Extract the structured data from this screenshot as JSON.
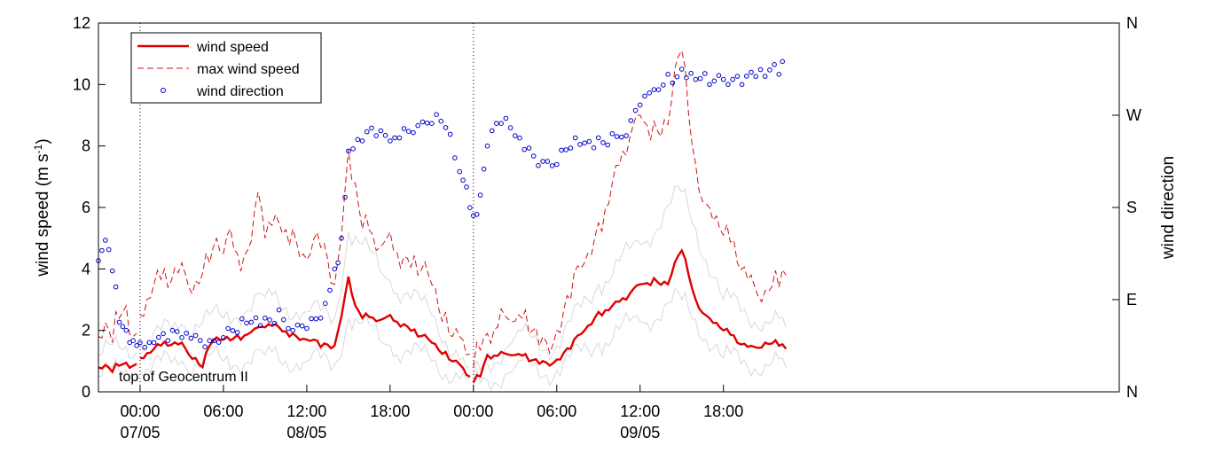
{
  "chart_data": {
    "type": "line",
    "ylabel": "wind speed (m s-1)",
    "ylabel_main": "wind speed (m s",
    "ylabel_sup": "-1",
    "ylabel_close": ")",
    "y2label": "wind direction",
    "annotation": "top of Geocentrum II",
    "ylim": [
      0,
      12
    ],
    "yticks": [
      0,
      2,
      4,
      6,
      8,
      10,
      12
    ],
    "ytick_labels": [
      "0",
      "2",
      "4",
      "6",
      "8",
      "10",
      "12"
    ],
    "y2ticks": [
      {
        "value": 0,
        "label": "N"
      },
      {
        "value": 90,
        "label": "E"
      },
      {
        "value": 180,
        "label": "S"
      },
      {
        "value": 270,
        "label": "W"
      },
      {
        "value": 360,
        "label": "N"
      }
    ],
    "y2lim": [
      0,
      360
    ],
    "xlim": [
      "2014-05-06T21:00",
      "2014-05-09T22:30"
    ],
    "xticks": [
      {
        "time": "2014-05-07T00:00",
        "label": "00:00",
        "date": "07/05"
      },
      {
        "time": "2014-05-07T06:00",
        "label": "06:00"
      },
      {
        "time": "2014-05-07T12:00",
        "label": "12:00",
        "date": "08/05"
      },
      {
        "time": "2014-05-07T18:00",
        "label": "18:00"
      },
      {
        "time": "2014-05-08T00:00",
        "label": "00:00"
      },
      {
        "time": "2014-05-08T06:00",
        "label": "06:00"
      },
      {
        "time": "2014-05-08T12:00",
        "label": "12:00",
        "date": "09/05"
      },
      {
        "time": "2014-05-08T18:00",
        "label": "18:00"
      }
    ],
    "day_separators": [
      "2014-05-07T00:00",
      "2014-05-08T00:00"
    ],
    "legend": {
      "placement": "top-left",
      "entries": [
        "wind speed",
        "max wind speed",
        "wind direction"
      ]
    },
    "colors": {
      "wind_speed": "#e00000",
      "max_wind_speed": "#d01010",
      "wind_direction": "#0000cc",
      "spread": "#d8d8d8"
    },
    "series": [
      {
        "name": "wind speed",
        "style": "solid",
        "points": [
          [
            "2014-05-06T21:00",
            0.8
          ],
          [
            "2014-05-06T22:00",
            0.65
          ],
          [
            "2014-05-06T22:30",
            0.85
          ],
          [
            "2014-05-06T23:00",
            0.95
          ],
          [
            "2014-05-06T23:30",
            0.85
          ],
          [
            "2014-05-07T00:00",
            1.1
          ],
          [
            "2014-05-07T01:00",
            1.4
          ],
          [
            "2014-05-07T02:00",
            1.5
          ],
          [
            "2014-05-07T03:00",
            1.6
          ],
          [
            "2014-05-07T04:00",
            1.1
          ],
          [
            "2014-05-07T04:30",
            0.8
          ],
          [
            "2014-05-07T05:00",
            1.5
          ],
          [
            "2014-05-07T06:00",
            1.7
          ],
          [
            "2014-05-07T07:00",
            1.85
          ],
          [
            "2014-05-07T08:00",
            1.95
          ],
          [
            "2014-05-07T09:00",
            2.1
          ],
          [
            "2014-05-07T10:00",
            2.1
          ],
          [
            "2014-05-07T11:00",
            1.9
          ],
          [
            "2014-05-07T12:00",
            1.7
          ],
          [
            "2014-05-07T13:00",
            1.45
          ],
          [
            "2014-05-07T14:00",
            1.5
          ],
          [
            "2014-05-07T15:00",
            3.75
          ],
          [
            "2014-05-07T15:30",
            2.8
          ],
          [
            "2014-05-07T16:00",
            2.4
          ],
          [
            "2014-05-07T17:00",
            2.3
          ],
          [
            "2014-05-07T18:00",
            2.5
          ],
          [
            "2014-05-07T19:00",
            2.2
          ],
          [
            "2014-05-07T20:00",
            1.8
          ],
          [
            "2014-05-07T21:00",
            1.6
          ],
          [
            "2014-05-07T22:00",
            1.3
          ],
          [
            "2014-05-07T23:00",
            0.9
          ],
          [
            "2014-05-07T23:30",
            0.55
          ],
          [
            "2014-05-08T00:00",
            0.3
          ],
          [
            "2014-05-08T00:30",
            0.5
          ],
          [
            "2014-05-08T01:00",
            1.2
          ],
          [
            "2014-05-08T02:00",
            1.3
          ],
          [
            "2014-05-08T03:00",
            1.2
          ],
          [
            "2014-05-08T04:00",
            1.0
          ],
          [
            "2014-05-08T05:00",
            1.0
          ],
          [
            "2014-05-08T06:00",
            1.05
          ],
          [
            "2014-05-08T07:00",
            1.4
          ],
          [
            "2014-05-08T08:00",
            2.0
          ],
          [
            "2014-05-08T09:00",
            2.6
          ],
          [
            "2014-05-08T10:00",
            2.8
          ],
          [
            "2014-05-08T11:00",
            3.0
          ],
          [
            "2014-05-08T12:00",
            3.5
          ],
          [
            "2014-05-08T13:00",
            3.7
          ],
          [
            "2014-05-08T14:00",
            3.5
          ],
          [
            "2014-05-08T15:00",
            4.6
          ],
          [
            "2014-05-08T15:30",
            3.8
          ],
          [
            "2014-05-08T16:00",
            3.0
          ],
          [
            "2014-05-08T17:00",
            2.4
          ],
          [
            "2014-05-08T18:00",
            2.0
          ],
          [
            "2014-05-08T19:00",
            1.6
          ],
          [
            "2014-05-08T20:00",
            1.5
          ],
          [
            "2014-05-08T21:00",
            1.6
          ],
          [
            "2014-05-08T22:00",
            1.5
          ],
          [
            "2014-05-08T22:30",
            1.4
          ]
        ]
      },
      {
        "name": "max wind speed",
        "style": "dashed",
        "points": [
          [
            "2014-05-06T21:00",
            1.8
          ],
          [
            "2014-05-06T22:00",
            1.6
          ],
          [
            "2014-05-06T22:30",
            2.4
          ],
          [
            "2014-05-06T23:00",
            2.8
          ],
          [
            "2014-05-06T23:30",
            1.8
          ],
          [
            "2014-05-07T00:00",
            2.5
          ],
          [
            "2014-05-07T01:00",
            3.5
          ],
          [
            "2014-05-07T02:00",
            3.4
          ],
          [
            "2014-05-07T03:00",
            4.2
          ],
          [
            "2014-05-07T04:00",
            3.6
          ],
          [
            "2014-05-07T05:00",
            4.2
          ],
          [
            "2014-05-07T06:00",
            4.5
          ],
          [
            "2014-05-07T06:30",
            5.3
          ],
          [
            "2014-05-07T07:00",
            4.5
          ],
          [
            "2014-05-07T08:00",
            4.9
          ],
          [
            "2014-05-07T08:30",
            6.5
          ],
          [
            "2014-05-07T09:00",
            5.0
          ],
          [
            "2014-05-07T10:00",
            5.5
          ],
          [
            "2014-05-07T11:00",
            5.3
          ],
          [
            "2014-05-07T12:00",
            4.3
          ],
          [
            "2014-05-07T13:00",
            4.7
          ],
          [
            "2014-05-07T14:00",
            3.5
          ],
          [
            "2014-05-07T15:00",
            7.9
          ],
          [
            "2014-05-07T16:00",
            5.3
          ],
          [
            "2014-05-07T17:00",
            4.6
          ],
          [
            "2014-05-07T18:00",
            5.2
          ],
          [
            "2014-05-07T19:00",
            4.4
          ],
          [
            "2014-05-07T20:00",
            3.8
          ],
          [
            "2014-05-07T21:00",
            3.5
          ],
          [
            "2014-05-07T22:00",
            2.6
          ],
          [
            "2014-05-07T23:00",
            1.8
          ],
          [
            "2014-05-07T23:30",
            1.2
          ],
          [
            "2014-05-08T00:00",
            0.8
          ],
          [
            "2014-05-08T01:00",
            1.9
          ],
          [
            "2014-05-08T02:00",
            2.7
          ],
          [
            "2014-05-08T03:00",
            2.3
          ],
          [
            "2014-05-08T04:00",
            1.9
          ],
          [
            "2014-05-08T05:00",
            1.8
          ],
          [
            "2014-05-08T06:00",
            2.0
          ],
          [
            "2014-05-08T07:00",
            3.0
          ],
          [
            "2014-05-08T08:00",
            4.2
          ],
          [
            "2014-05-08T09:00",
            5.5
          ],
          [
            "2014-05-08T10:00",
            6.8
          ],
          [
            "2014-05-08T11:00",
            7.7
          ],
          [
            "2014-05-08T12:00",
            9.0
          ],
          [
            "2014-05-08T13:00",
            8.8
          ],
          [
            "2014-05-08T14:00",
            8.7
          ],
          [
            "2014-05-08T15:00",
            11.1
          ],
          [
            "2014-05-08T15:30",
            9.0
          ],
          [
            "2014-05-08T16:00",
            7.4
          ],
          [
            "2014-05-08T17:00",
            6.0
          ],
          [
            "2014-05-08T18:00",
            5.1
          ],
          [
            "2014-05-08T19:00",
            4.2
          ],
          [
            "2014-05-08T20:00",
            3.8
          ],
          [
            "2014-05-08T21:00",
            3.3
          ],
          [
            "2014-05-08T22:00",
            3.4
          ],
          [
            "2014-05-08T22:30",
            3.8
          ]
        ]
      },
      {
        "name": "upper range",
        "style": "thin",
        "points": [
          [
            "2014-05-06T21:00",
            1.2
          ],
          [
            "2014-05-07T00:00",
            1.5
          ],
          [
            "2014-05-07T03:00",
            2.2
          ],
          [
            "2014-05-07T06:00",
            2.4
          ],
          [
            "2014-05-07T09:00",
            3.1
          ],
          [
            "2014-05-07T12:00",
            2.6
          ],
          [
            "2014-05-07T14:00",
            2.4
          ],
          [
            "2014-05-07T15:00",
            5.2
          ],
          [
            "2014-05-07T18:00",
            3.6
          ],
          [
            "2014-05-07T21:00",
            2.5
          ],
          [
            "2014-05-07T23:30",
            0.8
          ],
          [
            "2014-05-08T00:00",
            0.5
          ],
          [
            "2014-05-08T03:00",
            1.8
          ],
          [
            "2014-05-08T06:00",
            1.5
          ],
          [
            "2014-05-08T09:00",
            3.5
          ],
          [
            "2014-05-08T12:00",
            4.8
          ],
          [
            "2014-05-08T15:00",
            6.5
          ],
          [
            "2014-05-08T18:00",
            3.0
          ],
          [
            "2014-05-08T21:00",
            2.3
          ],
          [
            "2014-05-08T22:30",
            2.1
          ]
        ]
      },
      {
        "name": "lower range",
        "style": "thin",
        "points": [
          [
            "2014-05-06T21:00",
            0.5
          ],
          [
            "2014-05-07T00:00",
            0.7
          ],
          [
            "2014-05-07T03:00",
            1.0
          ],
          [
            "2014-05-07T06:00",
            1.0
          ],
          [
            "2014-05-07T09:00",
            1.2
          ],
          [
            "2014-05-07T12:00",
            1.0
          ],
          [
            "2014-05-07T14:00",
            0.9
          ],
          [
            "2014-05-07T15:00",
            2.4
          ],
          [
            "2014-05-07T18:00",
            1.5
          ],
          [
            "2014-05-07T21:00",
            1.0
          ],
          [
            "2014-05-07T23:30",
            0.4
          ],
          [
            "2014-05-08T00:00",
            0.2
          ],
          [
            "2014-05-08T03:00",
            0.8
          ],
          [
            "2014-05-08T06:00",
            0.7
          ],
          [
            "2014-05-08T09:00",
            1.6
          ],
          [
            "2014-05-08T12:00",
            2.3
          ],
          [
            "2014-05-08T15:00",
            3.0
          ],
          [
            "2014-05-08T18:00",
            1.1
          ],
          [
            "2014-05-08T21:00",
            0.9
          ],
          [
            "2014-05-08T22:30",
            0.8
          ]
        ]
      },
      {
        "name": "wind direction",
        "style": "markers",
        "axis": "right",
        "points": [
          [
            "2014-05-06T21:00",
            128
          ],
          [
            "2014-05-06T21:30",
            148
          ],
          [
            "2014-05-06T22:00",
            118
          ],
          [
            "2014-05-06T22:30",
            68
          ],
          [
            "2014-05-06T23:00",
            60
          ],
          [
            "2014-05-06T23:30",
            50
          ],
          [
            "2014-05-07T00:00",
            48
          ],
          [
            "2014-05-07T01:00",
            48
          ],
          [
            "2014-05-07T02:00",
            50
          ],
          [
            "2014-05-07T03:00",
            53
          ],
          [
            "2014-05-07T04:00",
            55
          ],
          [
            "2014-05-07T05:00",
            50
          ],
          [
            "2014-05-07T06:00",
            53
          ],
          [
            "2014-05-07T07:00",
            58
          ],
          [
            "2014-05-07T08:00",
            68
          ],
          [
            "2014-05-07T09:00",
            72
          ],
          [
            "2014-05-07T10:00",
            80
          ],
          [
            "2014-05-07T11:00",
            60
          ],
          [
            "2014-05-07T12:00",
            62
          ],
          [
            "2014-05-07T13:00",
            72
          ],
          [
            "2014-05-07T14:00",
            120
          ],
          [
            "2014-05-07T14:30",
            150
          ],
          [
            "2014-05-07T15:00",
            235
          ],
          [
            "2014-05-07T16:00",
            245
          ],
          [
            "2014-05-07T17:00",
            250
          ],
          [
            "2014-05-07T18:00",
            245
          ],
          [
            "2014-05-07T19:00",
            257
          ],
          [
            "2014-05-07T20:00",
            260
          ],
          [
            "2014-05-07T21:00",
            262
          ],
          [
            "2014-05-07T22:00",
            258
          ],
          [
            "2014-05-07T23:00",
            215
          ],
          [
            "2014-05-07T23:30",
            200
          ],
          [
            "2014-05-08T00:00",
            172
          ],
          [
            "2014-05-08T00:30",
            192
          ],
          [
            "2014-05-08T01:00",
            240
          ],
          [
            "2014-05-08T02:00",
            262
          ],
          [
            "2014-05-08T03:00",
            250
          ],
          [
            "2014-05-08T04:00",
            238
          ],
          [
            "2014-05-08T05:00",
            225
          ],
          [
            "2014-05-08T06:00",
            222
          ],
          [
            "2014-05-08T07:00",
            238
          ],
          [
            "2014-05-08T08:00",
            243
          ],
          [
            "2014-05-08T09:00",
            248
          ],
          [
            "2014-05-08T10:00",
            252
          ],
          [
            "2014-05-08T11:00",
            250
          ],
          [
            "2014-05-08T12:00",
            280
          ],
          [
            "2014-05-08T13:00",
            295
          ],
          [
            "2014-05-08T14:00",
            310
          ],
          [
            "2014-05-08T15:00",
            315
          ],
          [
            "2014-05-08T16:00",
            305
          ],
          [
            "2014-05-08T17:00",
            300
          ],
          [
            "2014-05-08T18:00",
            305
          ],
          [
            "2014-05-08T19:00",
            308
          ],
          [
            "2014-05-08T20:00",
            312
          ],
          [
            "2014-05-08T21:00",
            308
          ],
          [
            "2014-05-08T22:00",
            310
          ],
          [
            "2014-05-08T22:30",
            325
          ]
        ]
      }
    ]
  }
}
